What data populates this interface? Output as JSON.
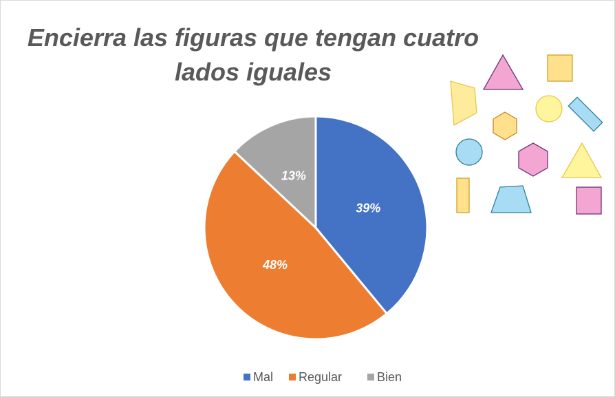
{
  "chart_data": {
    "type": "pie",
    "title": "Encierra las figuras que tengan cuatro lados iguales",
    "categories": [
      "Mal",
      "Regular",
      "Bien"
    ],
    "values": [
      39,
      48,
      13
    ],
    "value_labels": [
      "39%",
      "48%",
      "13%"
    ],
    "colors": [
      "#4472c4",
      "#ed7d31",
      "#a5a5a5"
    ],
    "legend": "bottom"
  }
}
